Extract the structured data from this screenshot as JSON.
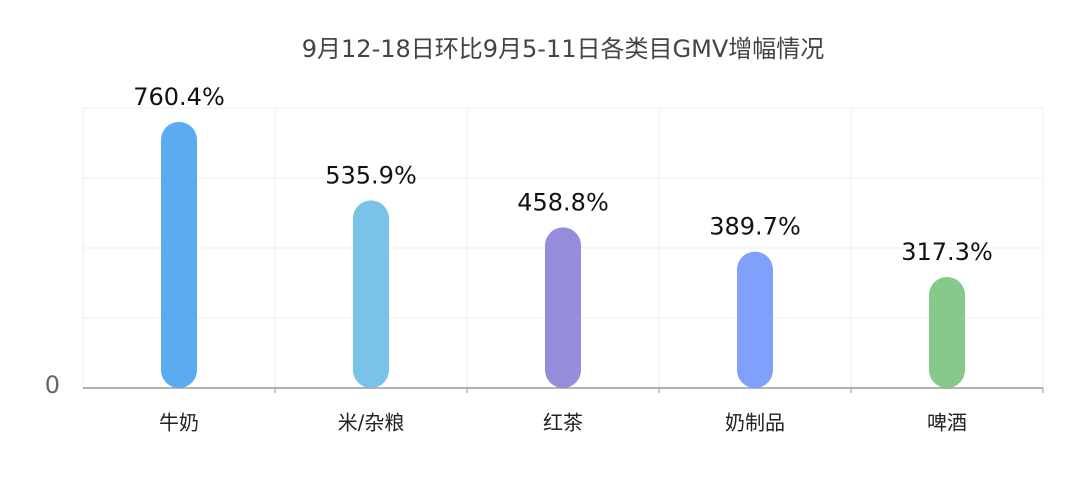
{
  "chart_data": {
    "type": "bar",
    "title": "9月12-18日环比9月5-11日各类目GMV增幅情况",
    "categories": [
      "牛奶",
      "米/杂粮",
      "红茶",
      "奶制品",
      "啤酒"
    ],
    "values": [
      760.4,
      535.9,
      458.8,
      389.7,
      317.3
    ],
    "value_labels": [
      "760.4%",
      "535.9%",
      "458.8%",
      "389.7%",
      "317.3%"
    ],
    "colors": [
      "#5aabf0",
      "#79c3e8",
      "#958ddb",
      "#7fa0fb",
      "#86c98a"
    ],
    "ylim": [
      0,
      800
    ],
    "yticks": [
      0
    ],
    "grid_values": [
      200,
      400,
      600,
      800
    ],
    "grid": true
  }
}
